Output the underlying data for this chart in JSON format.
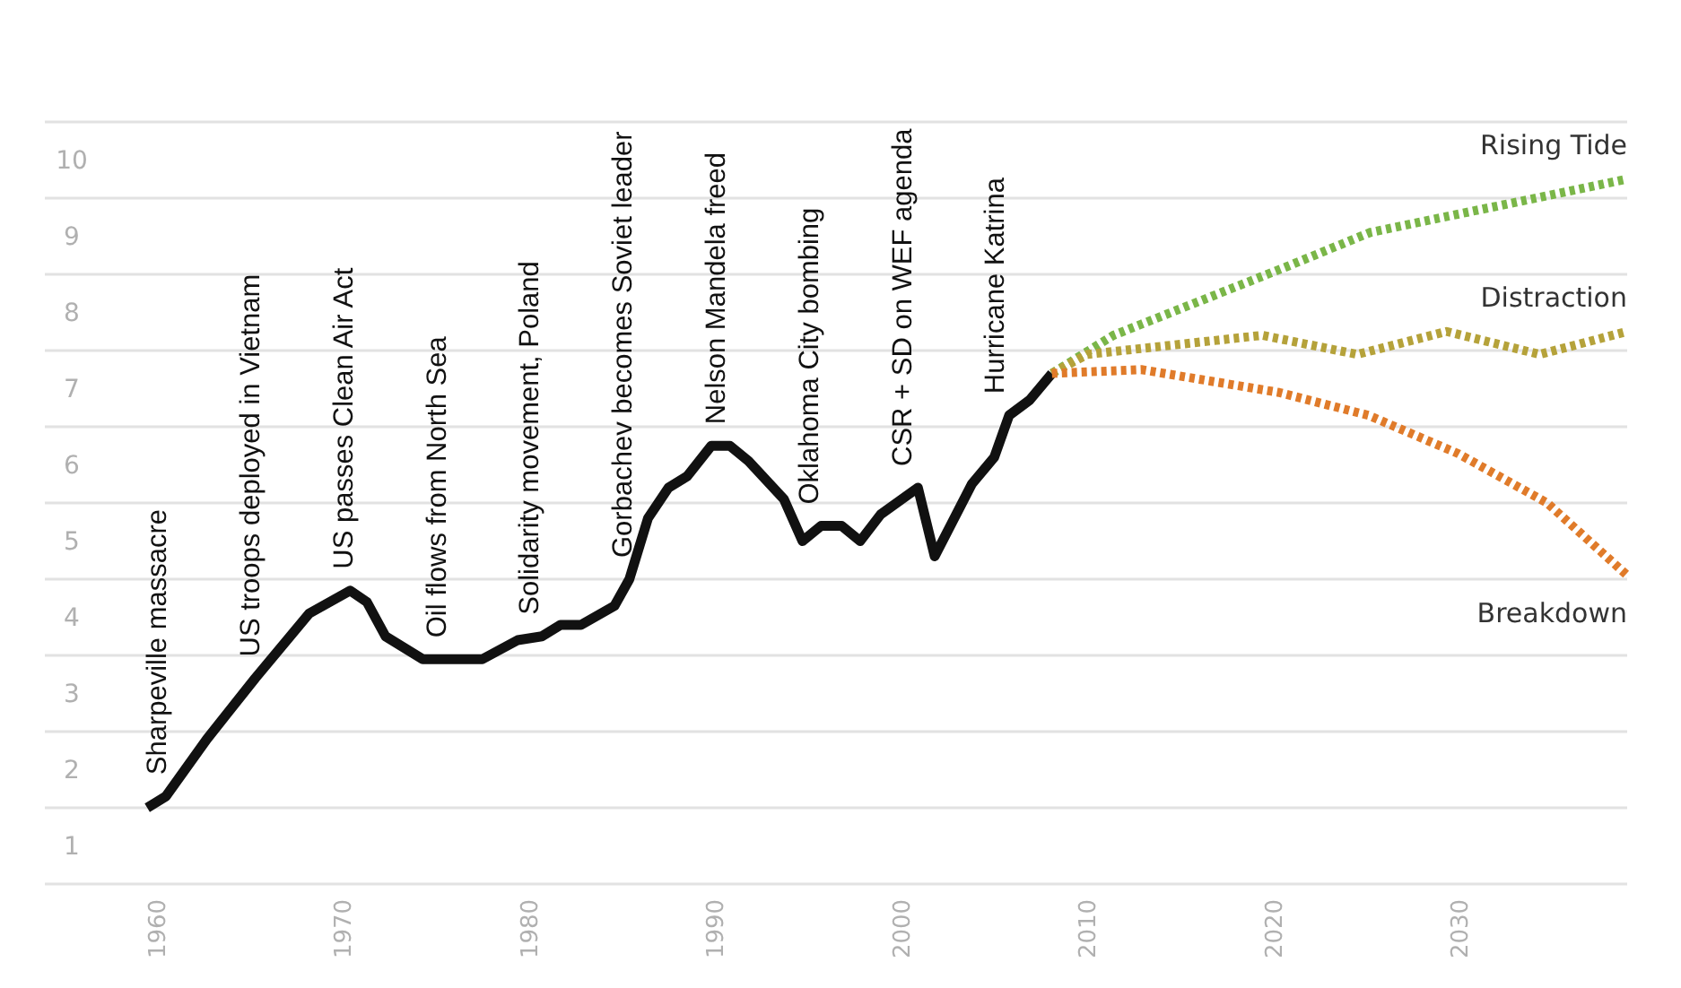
{
  "chart_data": {
    "type": "line",
    "xlim": [
      1954,
      2039
    ],
    "xticks": [
      1960,
      1970,
      1980,
      1990,
      2000,
      2010,
      2020,
      2030
    ],
    "ylim": [
      0.5,
      10.5
    ],
    "yticks": [
      {
        "value": 0.5,
        "label": null
      },
      1,
      {
        "value": 1.5,
        "label": null
      },
      2,
      {
        "value": 2.5,
        "label": null
      },
      3,
      {
        "value": 3.5,
        "label": null
      },
      4,
      {
        "value": 4.5,
        "label": null
      },
      5,
      {
        "value": 5.5,
        "label": null
      },
      6,
      {
        "value": 6.5,
        "label": null
      },
      7,
      {
        "value": 7.5,
        "label": null
      },
      8,
      {
        "value": 8.5,
        "label": null
      },
      9,
      {
        "value": 9.5,
        "label": null
      },
      10,
      {
        "value": 10.5,
        "label": null
      }
    ],
    "grid": "y",
    "series": [
      {
        "color": "#111111",
        "line_style": "solid",
        "x": [
          1959.5,
          1960.5,
          1962.7,
          1965.3,
          1968.2,
          1970.4,
          1971.3,
          1972.3,
          1974.3,
          1977.5,
          1979.4,
          1980.7,
          1981.7,
          1982.8,
          1984.6,
          1985.4,
          1986.4,
          1987.5,
          1988.5,
          1989.8,
          1990.8,
          1991.8,
          1993.7,
          1994.7,
          1995.7,
          1996.8,
          1997.8,
          1998.9,
          2000.9,
          2001.8,
          2003.8,
          2005,
          2005.8,
          2006.9,
          2008.1
        ],
        "values": [
          1.5,
          1.65,
          2.4,
          3.2,
          4.05,
          4.35,
          4.2,
          3.75,
          3.45,
          3.45,
          3.7,
          3.75,
          3.9,
          3.9,
          4.15,
          4.5,
          5.3,
          5.7,
          5.85,
          6.25,
          6.25,
          6.05,
          5.55,
          5,
          5.2,
          5.2,
          5,
          5.35,
          5.7,
          4.8,
          5.75,
          6.1,
          6.65,
          6.85,
          7.2
        ]
      },
      {
        "name": "Rising Tide",
        "color": "#7ab648",
        "line_style": "dotted",
        "x": [
          2008.1,
          2011.4,
          2020.7,
          2025.2,
          2039
        ],
        "values": [
          7.2,
          7.7,
          8.6,
          9.05,
          9.75
        ]
      },
      {
        "name": "Distraction",
        "color": "#b5a23a",
        "line_style": "dotted",
        "x": [
          2008.1,
          2010,
          2019.4,
          2024.5,
          2029.3,
          2034.3,
          2039
        ],
        "values": [
          7.2,
          7.45,
          7.7,
          7.45,
          7.75,
          7.45,
          7.75
        ]
      },
      {
        "name": "Breakdown",
        "color": "#e07b2a",
        "line_style": "dotted",
        "x": [
          2008.1,
          2012.9,
          2020.3,
          2025.1,
          2029.9,
          2034.7,
          2039
        ],
        "values": [
          7.2,
          7.25,
          6.95,
          6.65,
          6.15,
          5.5,
          4.55
        ]
      }
    ],
    "annotations": [
      "Sharpeville massacre",
      "US troops deployed in Vietnam",
      "US passes Clean Air Act",
      "Oil flows from North Sea",
      "Solidarity movement, Poland",
      "Gorbachev becomes Soviet leader",
      "Nelson Mandela freed",
      "Oklahoma City bombing",
      "CSR + SD on WEF agenda",
      "Hurricane Katrina"
    ]
  }
}
